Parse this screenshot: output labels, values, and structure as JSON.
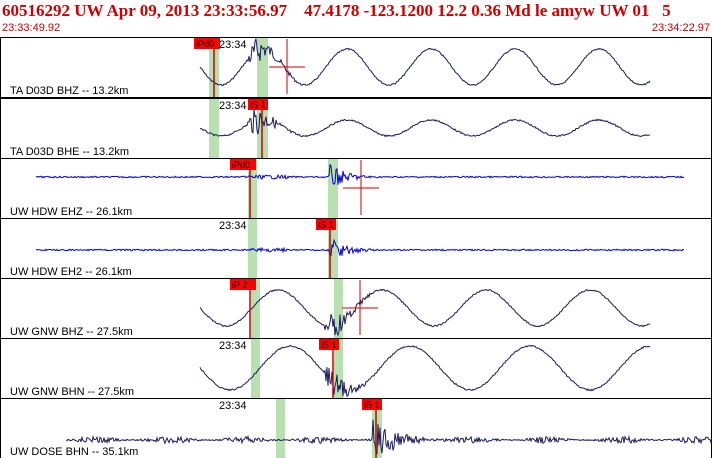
{
  "header": {
    "title": "60516292 UW Apr 09, 2013 23:33:56.97    47.4178 -123.1200 12.2 0.36 Md le amyw UW 01   5",
    "start_time": "23:33:49.92",
    "end_time": "23:34:22.97"
  },
  "colors": {
    "pick": "#ff0000",
    "window": "#b8e0b0",
    "trace_dark": "#1a1a5c",
    "trace_blue": "#0000dd",
    "label": "#cc0000"
  },
  "channels": [
    {
      "label": "TA D03D BHZ -- 13.2km",
      "tick": "23:34",
      "pick": "iPd0",
      "color": "dark"
    },
    {
      "label": "TA D03D BHE -- 13.2km",
      "tick": "23:34",
      "pick": "iS 1",
      "color": "dark"
    },
    {
      "label": "UW HDW EHZ -- 26.1km",
      "tick": "",
      "pick": "iPd0",
      "color": "blue"
    },
    {
      "label": "UW HDW EH2 -- 26.1km",
      "tick": "23:34",
      "pick": "iS 1",
      "color": "blue"
    },
    {
      "label": "UW GNW BHZ -- 27.5km",
      "tick": "",
      "pick": "iP 2",
      "color": "dark"
    },
    {
      "label": "UW GNW BHN -- 27.5km",
      "tick": "23:34",
      "pick": "iS 1",
      "color": "dark"
    },
    {
      "label": "UW DOSE BHN -- 35.1km",
      "tick": "23:34",
      "pick": "iS 1",
      "color": "dark"
    }
  ]
}
